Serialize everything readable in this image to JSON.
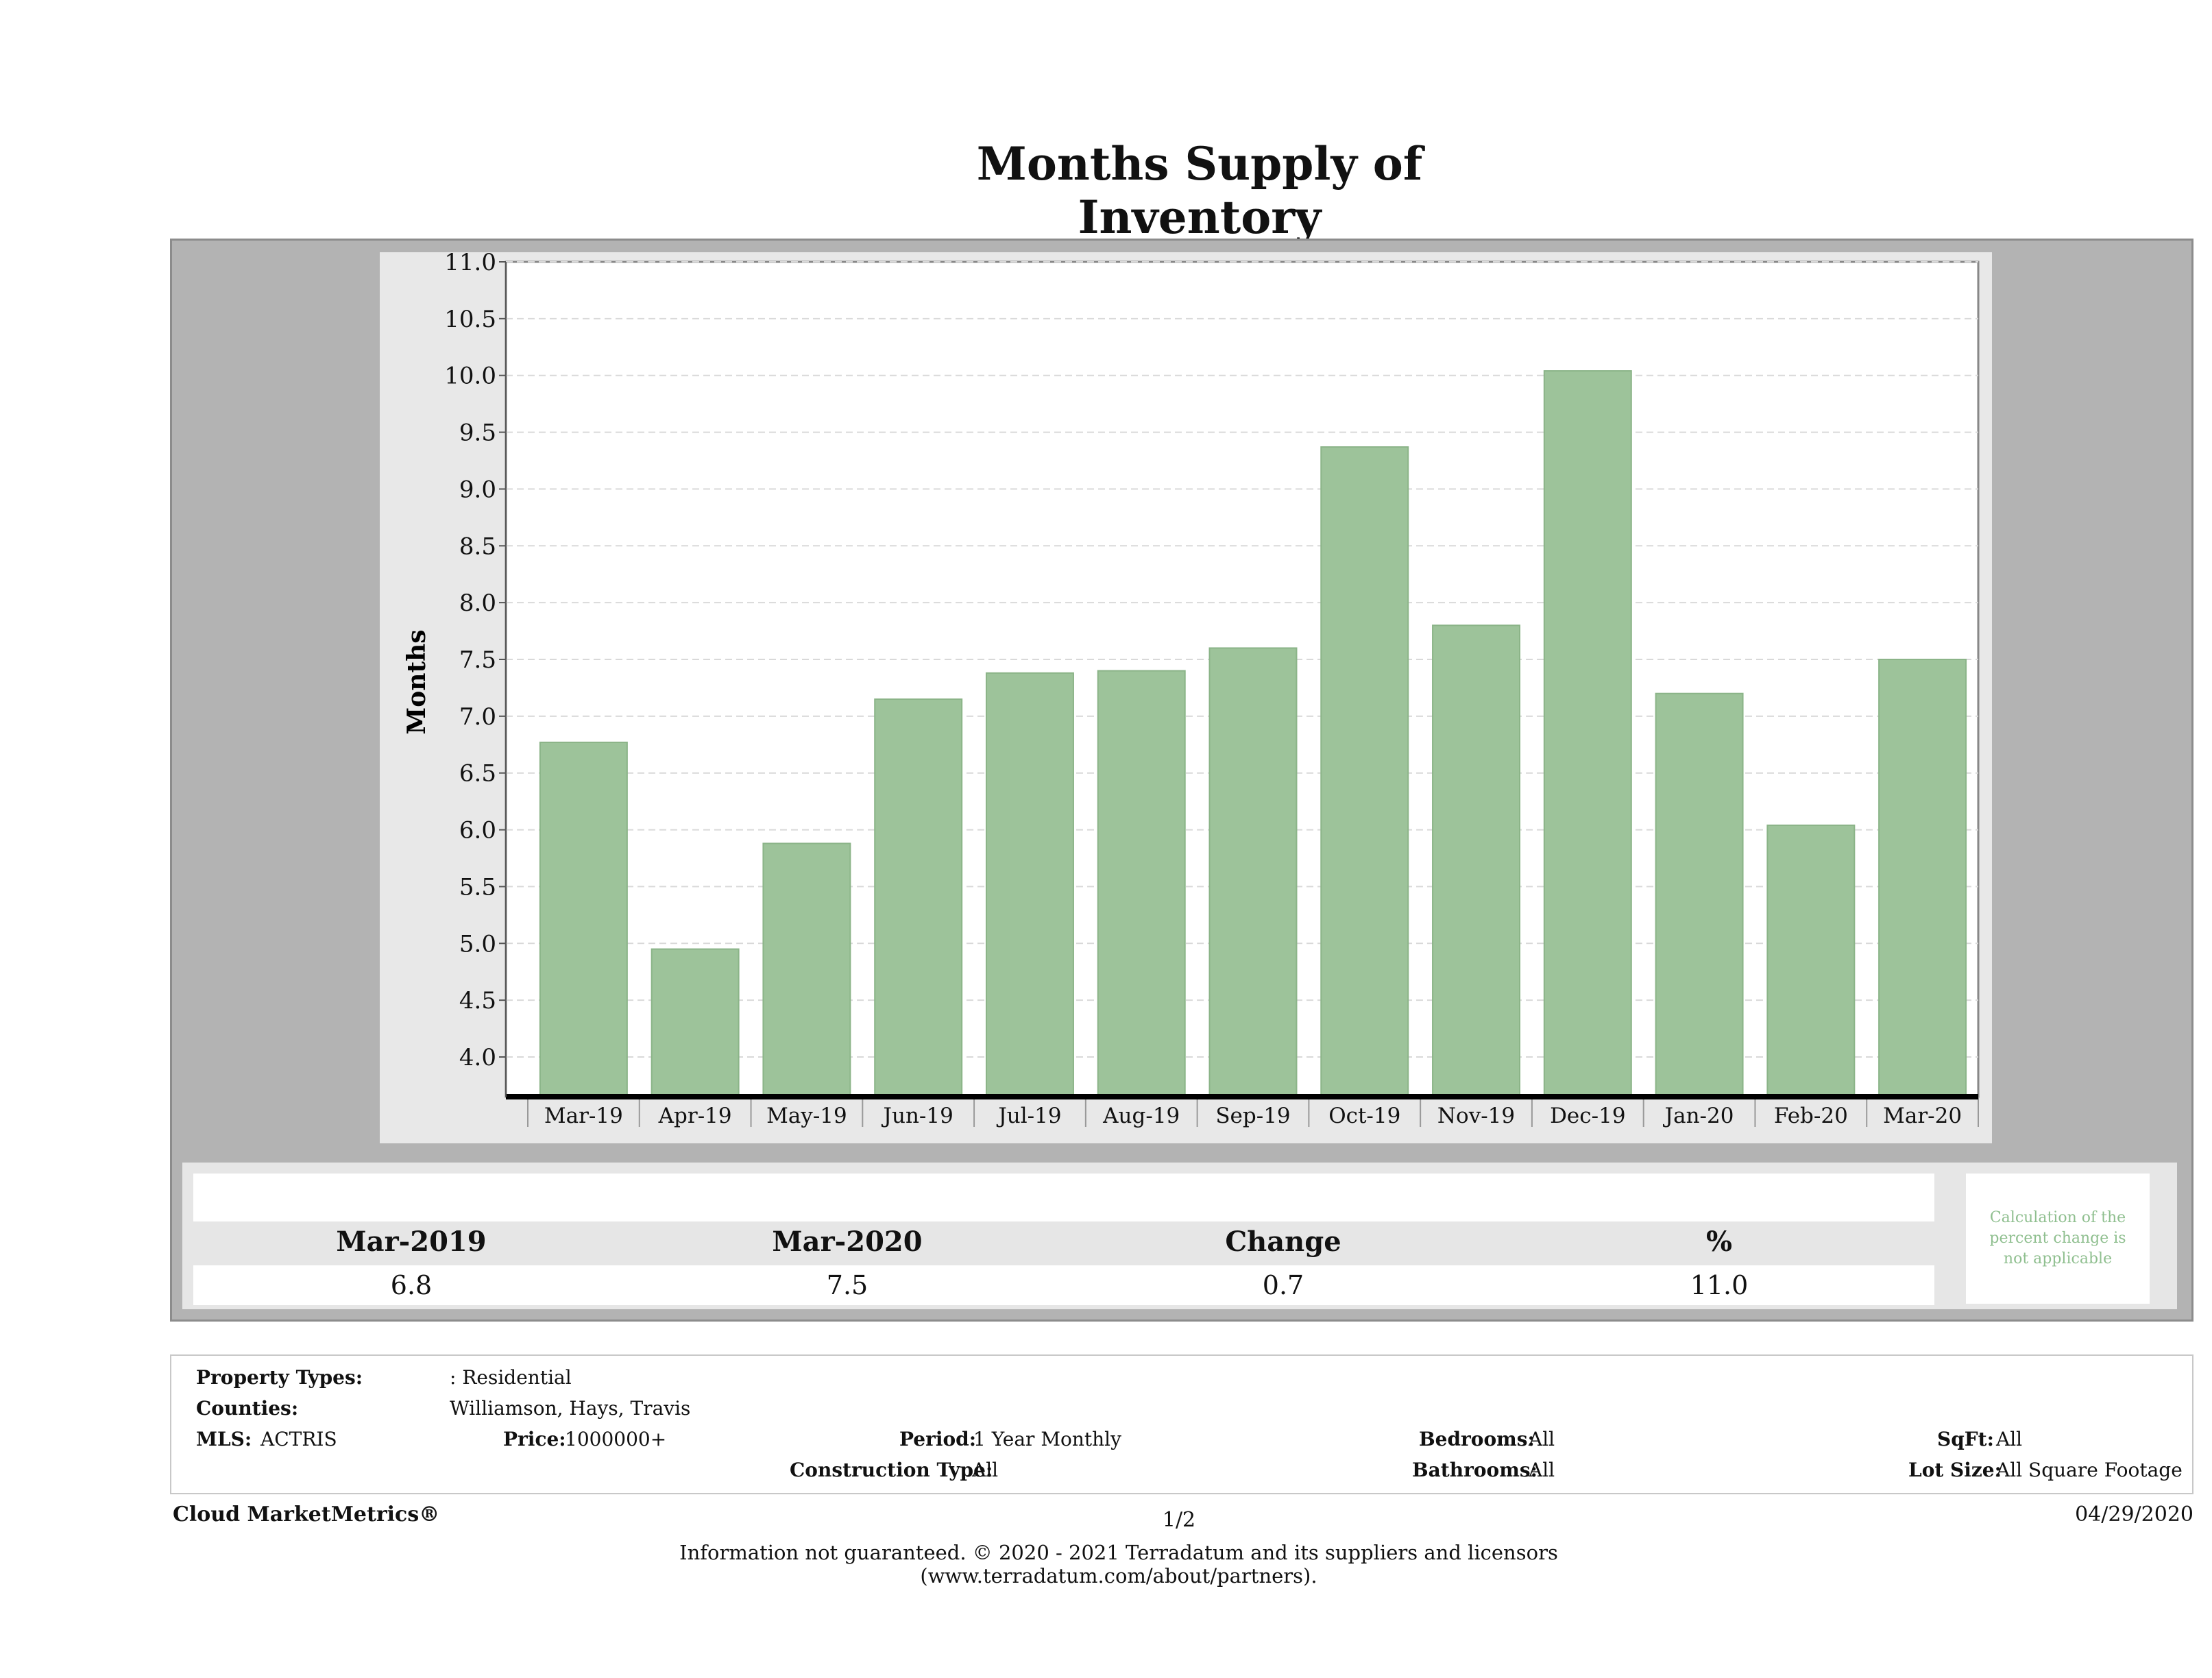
{
  "page_title": "Months Supply of Inventory",
  "chart_data": {
    "type": "bar",
    "title": "Months Supply of Inventory",
    "xlabel": "",
    "ylabel": "Months",
    "ylim": [
      3.65,
      11.0
    ],
    "yticks": [
      "11.0",
      "10.5",
      "10.0",
      "9.5",
      "9.0",
      "8.5",
      "8.0",
      "7.5",
      "7.0",
      "6.5",
      "6.0",
      "5.5",
      "5.0",
      "4.5",
      "4.0"
    ],
    "categories": [
      "Mar-19",
      "Apr-19",
      "May-19",
      "Jun-19",
      "Jul-19",
      "Aug-19",
      "Sep-19",
      "Oct-19",
      "Nov-19",
      "Dec-19",
      "Jan-20",
      "Feb-20",
      "Mar-20"
    ],
    "values": [
      6.77,
      4.95,
      5.88,
      7.15,
      7.38,
      7.4,
      7.6,
      9.37,
      7.8,
      10.04,
      7.2,
      6.04,
      7.5
    ],
    "grid": true,
    "bar_color": "#9dc39a"
  },
  "summary": {
    "headers": [
      "Mar-2019",
      "Mar-2020",
      "Change",
      "%"
    ],
    "values": [
      "6.8",
      "7.5",
      "0.7",
      "11.0"
    ],
    "note": "Calculation of the percent change is not applicable"
  },
  "criteria": {
    "property_types_label": "Property Types:",
    "property_types_value": ": Residential",
    "counties_label": "Counties:",
    "counties_value": "Williamson, Hays, Travis",
    "mls_label": "MLS:",
    "mls_value": "ACTRIS",
    "price_label": "Price:",
    "price_value": "1000000+",
    "period_label": "Period:",
    "period_value": "1 Year Monthly",
    "construction_label": "Construction Type:",
    "construction_value": "All",
    "bedrooms_label": "Bedrooms:",
    "bedrooms_value": "All",
    "bathrooms_label": "Bathrooms:",
    "bathrooms_value": "All",
    "sqft_label": "SqFt:",
    "sqft_value": "All",
    "lot_label": "Lot Size:",
    "lot_value": "All Square Footage"
  },
  "footer": {
    "brand": "Cloud MarketMetrics®",
    "page": "1/2",
    "date": "04/29/2020",
    "disclaimer": "Information not guaranteed. © 2020 - 2021 Terradatum and its suppliers and licensors (www.terradatum.com/about/partners)."
  }
}
